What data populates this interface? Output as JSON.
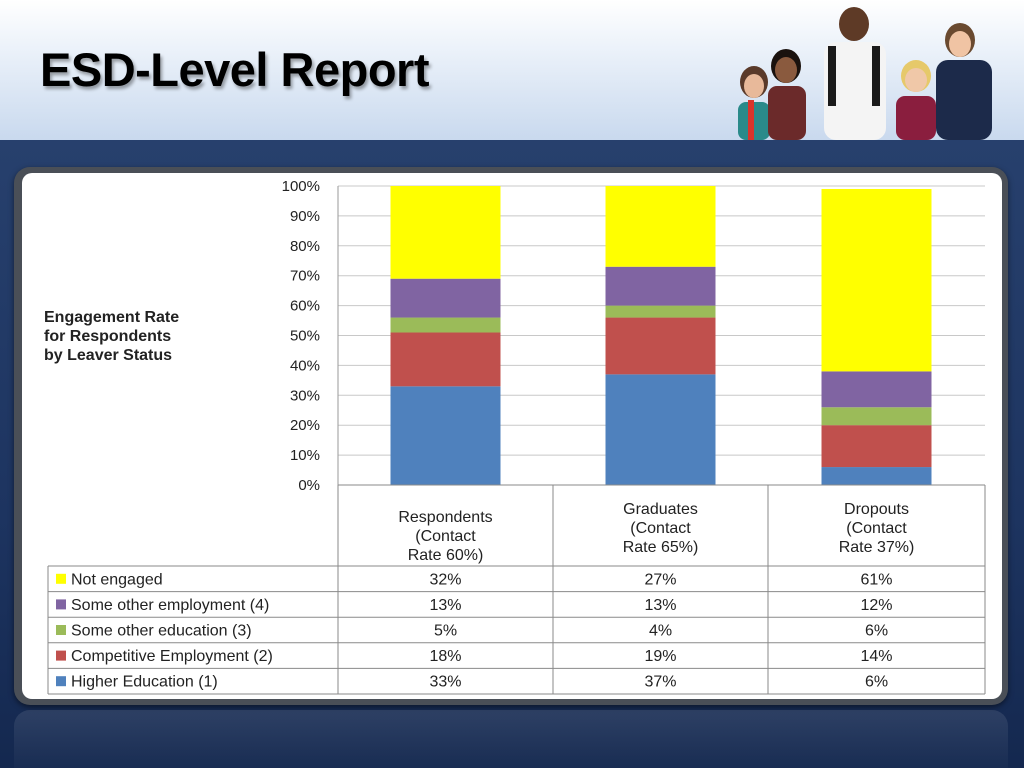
{
  "page": {
    "title": "ESD-Level Report"
  },
  "chart_data": {
    "type": "bar",
    "stacked": true,
    "title": "Engagement Rate for Respondents by Leaver Status",
    "title_lines": [
      "Engagement Rate",
      "for Respondents",
      "by Leaver Status"
    ],
    "categories": [
      "Respondents (Contact Rate 60%)",
      "Graduates (Contact Rate 65%)",
      "Dropouts (Contact Rate 37%)"
    ],
    "category_lines": [
      [
        "Respondents",
        "(Contact",
        "Rate 60%)"
      ],
      [
        "Graduates",
        "(Contact",
        "Rate 65%)"
      ],
      [
        "Dropouts",
        "(Contact",
        "Rate 37%)"
      ]
    ],
    "ylim": [
      0,
      100
    ],
    "yticks": [
      "0%",
      "10%",
      "20%",
      "30%",
      "40%",
      "50%",
      "60%",
      "70%",
      "80%",
      "90%",
      "100%"
    ],
    "grid": true,
    "stack_order_bottom_to_top": [
      "Higher Education (1)",
      "Competitive Employment (2)",
      "Some other education (3)",
      "Some other employment (4)",
      "Not engaged"
    ],
    "series": [
      {
        "name": "Not engaged",
        "color": "#ffff00",
        "values": [
          32,
          27,
          61
        ],
        "labels": [
          "32%",
          "27%",
          "61%"
        ]
      },
      {
        "name": "Some other employment (4)",
        "color": "#8064a2",
        "values": [
          13,
          13,
          12
        ],
        "labels": [
          "13%",
          "13%",
          "12%"
        ]
      },
      {
        "name": "Some other education (3)",
        "color": "#9bbb59",
        "values": [
          5,
          4,
          6
        ],
        "labels": [
          "5%",
          "4%",
          "6%"
        ]
      },
      {
        "name": "Competitive Employment (2)",
        "color": "#c0504d",
        "values": [
          18,
          19,
          14
        ],
        "labels": [
          "18%",
          "19%",
          "14%"
        ]
      },
      {
        "name": "Higher Education (1)",
        "color": "#4f81bd",
        "values": [
          33,
          37,
          6
        ],
        "labels": [
          "33%",
          "37%",
          "6%"
        ]
      }
    ]
  }
}
